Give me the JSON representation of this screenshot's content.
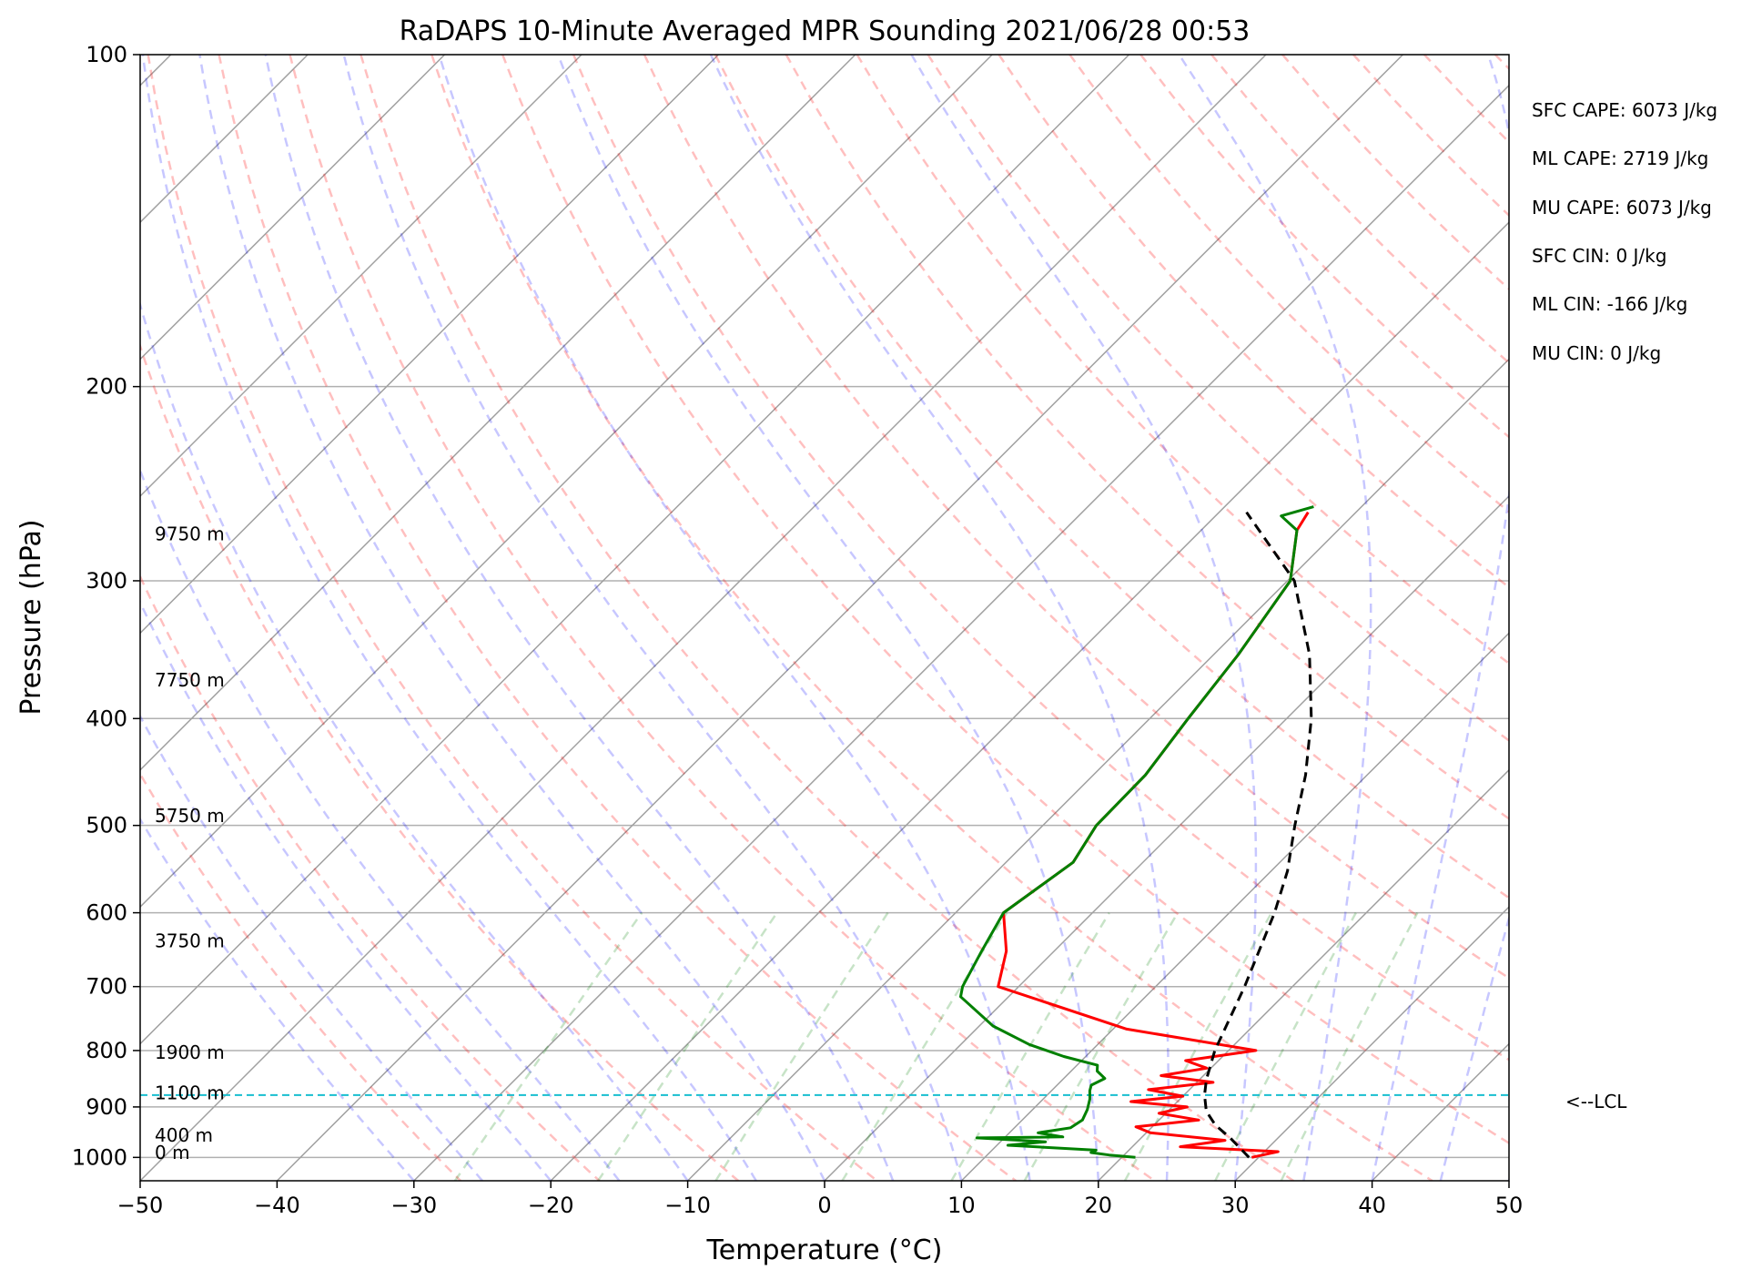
{
  "chart_data": {
    "type": "line",
    "title": "RaDAPS 10-Minute Averaged MPR Sounding 2021/06/28 00:53",
    "xlabel": "Temperature (°C)",
    "ylabel": "Pressure (hPa)",
    "xlim": [
      -50,
      50
    ],
    "ylim": [
      1050,
      100
    ],
    "y_scale": "log",
    "x_ticks": [
      "−50",
      "−40",
      "−30",
      "−20",
      "−10",
      "0",
      "10",
      "20",
      "30",
      "40",
      "50"
    ],
    "y_ticks": [
      "100",
      "200",
      "300",
      "400",
      "500",
      "600",
      "700",
      "800",
      "900",
      "1000"
    ],
    "skew": 45,
    "grid": true,
    "height_labels": [
      {
        "p": 990,
        "text": "0 m"
      },
      {
        "p": 955,
        "text": "400 m"
      },
      {
        "p": 874,
        "text": "1100 m"
      },
      {
        "p": 803,
        "text": "1900 m"
      },
      {
        "p": 636,
        "text": "3750 m"
      },
      {
        "p": 490,
        "text": "5750 m"
      },
      {
        "p": 369,
        "text": "7750 m"
      },
      {
        "p": 272,
        "text": "9750 m"
      }
    ],
    "indices": [
      "SFC CAPE: 6073 J/kg",
      "ML CAPE: 2719 J/kg",
      "MU CAPE: 6073 J/kg",
      "SFC CIN: 0 J/kg",
      "ML CIN: -166 J/kg",
      "MU CIN: 0 J/kg"
    ],
    "lcl": {
      "p": 878,
      "label": "<--LCL"
    },
    "series": [
      {
        "name": "",
        "color": "#ff0000",
        "points": [
          [
            29.5,
            1000
          ],
          [
            31.0,
            988
          ],
          [
            23.5,
            978
          ],
          [
            26.3,
            965
          ],
          [
            20.3,
            950
          ],
          [
            18.8,
            938
          ],
          [
            22.9,
            925
          ],
          [
            19.5,
            912
          ],
          [
            21.1,
            900
          ],
          [
            16.6,
            890
          ],
          [
            20.0,
            880
          ],
          [
            17.0,
            868
          ],
          [
            21.2,
            855
          ],
          [
            16.9,
            843
          ],
          [
            19.7,
            830
          ],
          [
            17.6,
            817
          ],
          [
            22.0,
            800
          ],
          [
            11.0,
            765
          ],
          [
            -1.5,
            700
          ],
          [
            -3.5,
            650
          ],
          [
            -6.5,
            600
          ],
          [
            -5.1,
            540
          ],
          [
            -6.1,
            500
          ],
          [
            -6.2,
            450
          ],
          [
            -7.2,
            400
          ],
          [
            -8.2,
            350
          ],
          [
            -9.8,
            300
          ],
          [
            -13.0,
            270
          ],
          [
            -13.5,
            260
          ]
        ]
      },
      {
        "name": "",
        "color": "#008000",
        "points": [
          [
            21.0,
            1000
          ],
          [
            18.9,
            995
          ],
          [
            17.4,
            990
          ],
          [
            17.6,
            985
          ],
          [
            10.8,
            975
          ],
          [
            13.3,
            968
          ],
          [
            8.0,
            960
          ],
          [
            14.2,
            958
          ],
          [
            12.1,
            950
          ],
          [
            14.1,
            940
          ],
          [
            14.4,
            925
          ],
          [
            14.0,
            905
          ],
          [
            13.4,
            885
          ],
          [
            12.8,
            870
          ],
          [
            12.5,
            860
          ],
          [
            13.0,
            848
          ],
          [
            11.9,
            835
          ],
          [
            11.5,
            825
          ],
          [
            8.4,
            810
          ],
          [
            5.0,
            790
          ],
          [
            1.0,
            760
          ],
          [
            -3.5,
            715
          ],
          [
            -4.1,
            700
          ],
          [
            -5.3,
            650
          ],
          [
            -6.5,
            600
          ],
          [
            -5.1,
            540
          ],
          [
            -6.1,
            500
          ],
          [
            -6.2,
            450
          ],
          [
            -7.2,
            400
          ],
          [
            -8.2,
            350
          ],
          [
            -9.8,
            300
          ],
          [
            -13.0,
            270
          ],
          [
            -15.2,
            262
          ],
          [
            -13.5,
            257
          ]
        ]
      },
      {
        "name": "",
        "color": "#000000",
        "dashed": true,
        "points": [
          [
            29.3,
            1000
          ],
          [
            26.5,
            960
          ],
          [
            24.5,
            935
          ],
          [
            22.8,
            908
          ],
          [
            21.5,
            878
          ],
          [
            20.5,
            850
          ],
          [
            19.0,
            800
          ],
          [
            16.5,
            700
          ],
          [
            13.3,
            600
          ],
          [
            11.2,
            550
          ],
          [
            8.4,
            500
          ],
          [
            5.5,
            450
          ],
          [
            1.8,
            400
          ],
          [
            -3.0,
            350
          ],
          [
            -9.5,
            300
          ],
          [
            -18.0,
            260
          ]
        ]
      }
    ]
  }
}
